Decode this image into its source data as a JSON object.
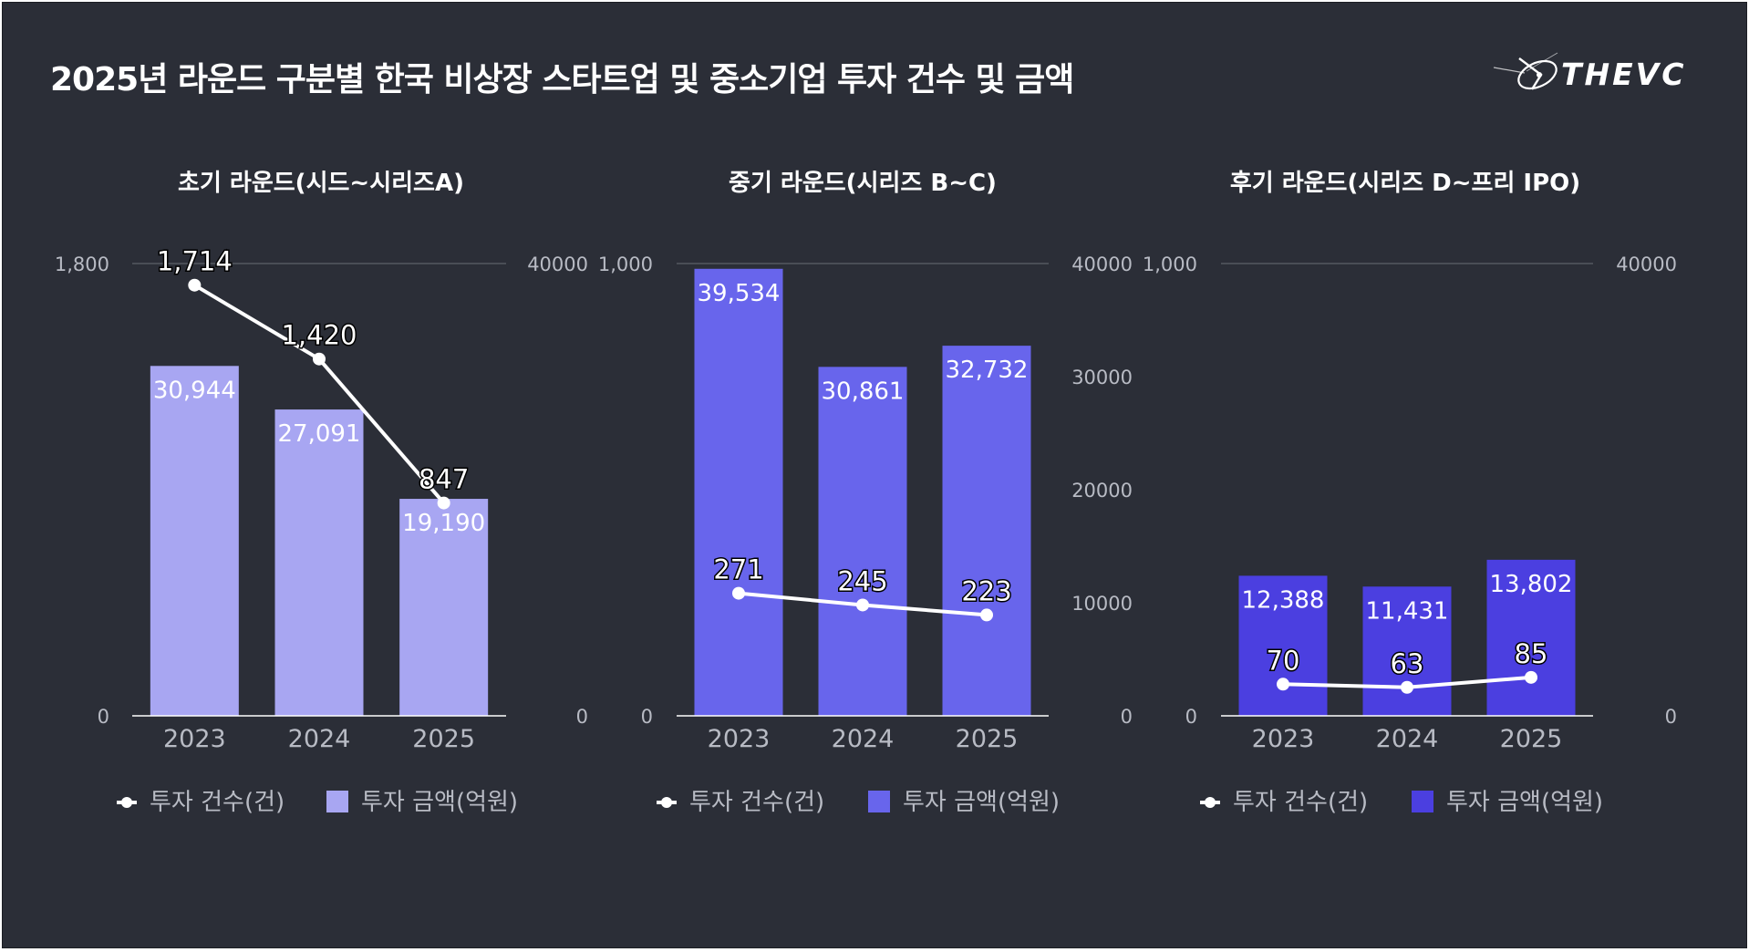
{
  "header": {
    "title": "2025년 라운드 구분별 한국 비상장 스타트업 및 중소기업 투자 건수 및 금액",
    "logo_text": "THEVC"
  },
  "colors": {
    "background": "#2b2e37",
    "line": "#ffffff",
    "axis_text": "#b8bbc4",
    "gridline": "#6a6d76"
  },
  "chart_data": [
    {
      "type": "bar",
      "title": "초기 라운드(시드~시리즈A)",
      "categories": [
        "2023",
        "2024",
        "2025"
      ],
      "bar_color": "#a8a6f2",
      "series": [
        {
          "name": "투자 금액(억원)",
          "type": "bar",
          "axis": "right",
          "values": [
            30944,
            27091,
            19190
          ],
          "labels": [
            "30,944",
            "27,091",
            "19,190"
          ]
        },
        {
          "name": "투자 건수(건)",
          "type": "line",
          "axis": "left",
          "values": [
            1714,
            1420,
            847
          ],
          "labels": [
            "1,714",
            "1,420",
            "847"
          ]
        }
      ],
      "left_axis": {
        "min": 0,
        "max": 1800,
        "ticks": [
          0,
          1800
        ],
        "tick_labels": [
          "0",
          "1,800"
        ]
      },
      "right_axis": {
        "min": 0,
        "max": 40000,
        "ticks": [
          0,
          40000
        ],
        "tick_labels": [
          "0",
          "40000"
        ]
      },
      "legend": [
        {
          "label": "투자 건수(건)",
          "kind": "line"
        },
        {
          "label": "투자 금액(억원)",
          "kind": "bar"
        }
      ],
      "gridlines": "top"
    },
    {
      "type": "bar",
      "title": "중기 라운드(시리즈 B~C)",
      "categories": [
        "2023",
        "2024",
        "2025"
      ],
      "bar_color": "#6865ec",
      "series": [
        {
          "name": "투자 금액(억원)",
          "type": "bar",
          "axis": "right",
          "values": [
            39534,
            30861,
            32732
          ],
          "labels": [
            "39,534",
            "30,861",
            "32,732"
          ]
        },
        {
          "name": "투자 건수(건)",
          "type": "line",
          "axis": "left",
          "values": [
            271,
            245,
            223
          ],
          "labels": [
            "271",
            "245",
            "223"
          ]
        }
      ],
      "left_axis": {
        "min": 0,
        "max": 1000,
        "ticks": [
          0,
          1000
        ],
        "tick_labels": [
          "0",
          "1,000"
        ]
      },
      "right_axis": {
        "min": 0,
        "max": 40000,
        "ticks": [
          0,
          10000,
          20000,
          30000,
          40000
        ],
        "tick_labels": [
          "0",
          "10000",
          "20000",
          "30000",
          "40000"
        ]
      },
      "legend": [
        {
          "label": "투자 건수(건)",
          "kind": "line"
        },
        {
          "label": "투자 금액(억원)",
          "kind": "bar"
        }
      ],
      "gridlines": "top"
    },
    {
      "type": "bar",
      "title": "후기 라운드(시리즈 D~프리 IPO)",
      "categories": [
        "2023",
        "2024",
        "2025"
      ],
      "bar_color": "#4b3fe0",
      "series": [
        {
          "name": "투자 금액(억원)",
          "type": "bar",
          "axis": "right",
          "values": [
            12388,
            11431,
            13802
          ],
          "labels": [
            "12,388",
            "11,431",
            "13,802"
          ]
        },
        {
          "name": "투자 건수(건)",
          "type": "line",
          "axis": "left",
          "values": [
            70,
            63,
            85
          ],
          "labels": [
            "70",
            "63",
            "85"
          ]
        }
      ],
      "left_axis": {
        "min": 0,
        "max": 1000,
        "ticks": [
          0,
          1000
        ],
        "tick_labels": [
          "0",
          "1,000"
        ]
      },
      "right_axis": {
        "min": 0,
        "max": 40000,
        "ticks": [
          0,
          40000
        ],
        "tick_labels": [
          "0",
          "40000"
        ]
      },
      "legend": [
        {
          "label": "투자 건수(건)",
          "kind": "line"
        },
        {
          "label": "투자 금액(억원)",
          "kind": "bar"
        }
      ],
      "gridlines": "top"
    }
  ]
}
